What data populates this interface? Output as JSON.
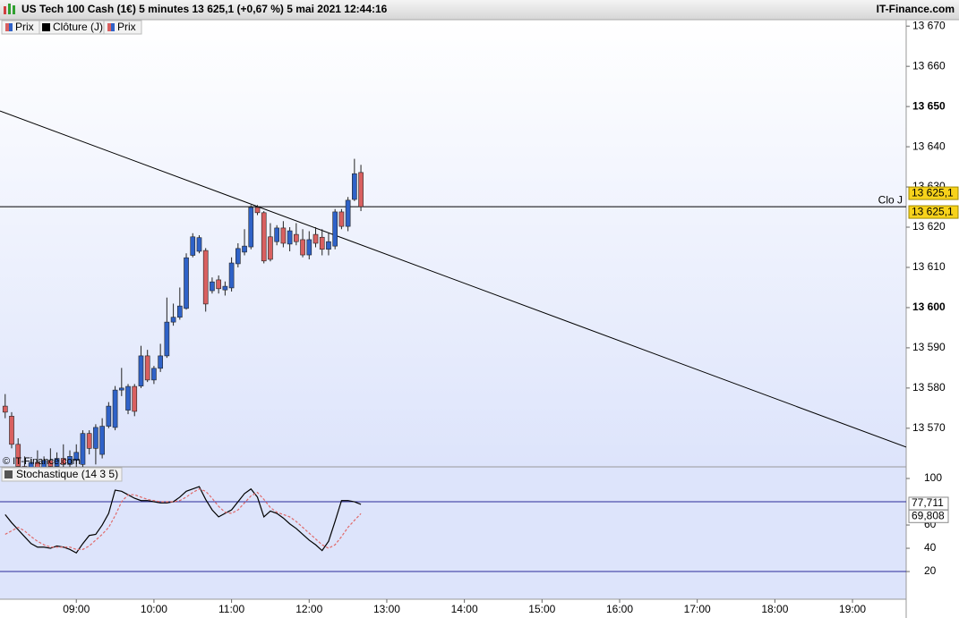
{
  "header": {
    "title": "US Tech 100 Cash (1€) 5 minutes 13 625,1 (+0,67 %) 5 mai 2021 12:44:16",
    "brand": "IT-Finance.com"
  },
  "chart_data": [
    {
      "type": "candlestick",
      "legend": [
        "Prix",
        "Clôture (J)",
        "Prix"
      ],
      "watermark": "© IT-Finance.com",
      "up_color": "#2f62c8",
      "down_color": "#d96060",
      "x": [
        485,
        490,
        495,
        500,
        505,
        510,
        515,
        520,
        525,
        530,
        535,
        540,
        545,
        550,
        555,
        560,
        565,
        570,
        575,
        580,
        585,
        590,
        595,
        600,
        605,
        610,
        615,
        620,
        625,
        630,
        635,
        640,
        645,
        650,
        655,
        660,
        665,
        670,
        675,
        680,
        685,
        690,
        695,
        700,
        705,
        710,
        715,
        720,
        725,
        730,
        735,
        740,
        745,
        750,
        755,
        760
      ],
      "open": [
        13575.5,
        13573.0,
        13566.0,
        13560.5,
        13558.5,
        13561.5,
        13559.0,
        13562.0,
        13560.5,
        13562.5,
        13561.0,
        13562.0,
        13561.0,
        13568.7,
        13565.0,
        13563.5,
        13570.5,
        13570.2,
        13579.5,
        13574.5,
        13580.4,
        13580.5,
        13588.0,
        13582.0,
        13584.9,
        13588.0,
        13596.4,
        13597.6,
        13599.8,
        13613.0,
        13614.0,
        13614.2,
        13604.2,
        13606.9,
        13604.4,
        13604.9,
        13610.9,
        13613.8,
        13615.1,
        13624.9,
        13623.6,
        13617.6,
        13616.4,
        13619.8,
        13615.8,
        13618.2,
        13616.9,
        13613.1,
        13618.2,
        13617.5,
        13614.5,
        13615.3,
        13623.8,
        13620.2,
        13626.9,
        13633.6
      ],
      "high": [
        13578.5,
        13574.0,
        13567.5,
        13563.0,
        13562.5,
        13564.5,
        13563.0,
        13565.0,
        13564.0,
        13566.0,
        13564.5,
        13566.0,
        13569.5,
        13569.5,
        13571.0,
        13572.5,
        13576.5,
        13580.5,
        13585.0,
        13581.0,
        13581.0,
        13590.5,
        13589.5,
        13585.5,
        13591.0,
        13602.5,
        13601.0,
        13605.0,
        13613.5,
        13618.5,
        13618.0,
        13614.8,
        13607.5,
        13608.0,
        13606.5,
        13612.5,
        13616.0,
        13619.5,
        13625.5,
        13625.5,
        13624.0,
        13621.0,
        13620.5,
        13621.5,
        13620.0,
        13621.0,
        13619.5,
        13619.0,
        13620.0,
        13619.5,
        13618.5,
        13624.5,
        13624.5,
        13627.5,
        13637.0,
        13635.5
      ],
      "low": [
        13572.5,
        13565.0,
        13559.0,
        13557.0,
        13556.5,
        13558.0,
        13557.5,
        13559.5,
        13558.0,
        13560.0,
        13558.5,
        13560.0,
        13560.0,
        13563.5,
        13561.0,
        13562.5,
        13570.0,
        13569.5,
        13578.0,
        13573.5,
        13573.0,
        13580.0,
        13581.5,
        13581.0,
        13584.0,
        13587.5,
        13595.5,
        13597.0,
        13599.5,
        13612.5,
        13613.5,
        13599.0,
        13603.5,
        13603.5,
        13603.0,
        13604.0,
        13610.0,
        13613.0,
        13614.5,
        13623.0,
        13611.0,
        13611.5,
        13615.5,
        13615.0,
        13614.0,
        13615.5,
        13612.5,
        13612.0,
        13615.0,
        13613.0,
        13613.0,
        13614.5,
        13619.5,
        13619.0,
        13626.5,
        13624.0
      ],
      "close": [
        13574.0,
        13566.0,
        13560.5,
        13558.5,
        13561.5,
        13559.0,
        13562.0,
        13560.5,
        13562.5,
        13561.0,
        13563.0,
        13564.0,
        13568.7,
        13565.0,
        13570.2,
        13570.5,
        13575.5,
        13579.5,
        13580.0,
        13580.4,
        13574.2,
        13588.0,
        13582.0,
        13584.9,
        13588.0,
        13596.4,
        13597.6,
        13600.4,
        13612.4,
        13617.6,
        13617.4,
        13600.9,
        13606.4,
        13604.7,
        13605.3,
        13611.1,
        13614.7,
        13615.3,
        13624.9,
        13623.6,
        13611.6,
        13612.0,
        13619.8,
        13616.0,
        13619.1,
        13616.4,
        13613.1,
        13616.9,
        13616.0,
        13614.5,
        13616.4,
        13623.8,
        13620.2,
        13626.7,
        13633.3,
        13625.1
      ],
      "xlim": [
        481,
        1181.5
      ],
      "xticks": [
        {
          "value": 540,
          "label": "09:00"
        },
        {
          "value": 600,
          "label": "10:00"
        },
        {
          "value": 660,
          "label": "11:00"
        },
        {
          "value": 720,
          "label": "12:00"
        },
        {
          "value": 780,
          "label": "13:00"
        },
        {
          "value": 840,
          "label": "14:00"
        },
        {
          "value": 900,
          "label": "15:00"
        },
        {
          "value": 960,
          "label": "16:00"
        },
        {
          "value": 1020,
          "label": "17:00"
        },
        {
          "value": 1080,
          "label": "18:00"
        },
        {
          "value": 1140,
          "label": "19:00"
        }
      ],
      "ylim": [
        13560.4,
        13671.6
      ],
      "yticks": [
        {
          "value": 13570,
          "label": "13 570"
        },
        {
          "value": 13580,
          "label": "13 580"
        },
        {
          "value": 13590,
          "label": "13 590"
        },
        {
          "value": 13600,
          "label": "13 600"
        },
        {
          "value": 13610,
          "label": "13 610"
        },
        {
          "value": 13620,
          "label": "13 620"
        },
        {
          "value": 13630,
          "label": "13 630"
        },
        {
          "value": 13640,
          "label": "13 640"
        },
        {
          "value": 13650,
          "label": "13 650"
        },
        {
          "value": 13660,
          "label": "13 660"
        },
        {
          "value": 13670,
          "label": "13 670"
        }
      ],
      "trendline": {
        "x": [
          481,
          1181.5
        ],
        "y": [
          13648.9,
          13565.3
        ]
      },
      "reference_line": {
        "label": "Clo J",
        "value": 13625.1
      },
      "price_labels": [
        {
          "value": 13625.1,
          "label": "13 625,1"
        },
        {
          "value": 13625.1,
          "label": "13 625,1"
        }
      ]
    },
    {
      "type": "line",
      "title": "Stochastique (14 3 5)",
      "x": [
        485,
        490,
        495,
        500,
        505,
        510,
        515,
        520,
        525,
        530,
        535,
        540,
        545,
        550,
        555,
        560,
        565,
        570,
        575,
        580,
        585,
        590,
        595,
        600,
        605,
        610,
        615,
        620,
        625,
        630,
        635,
        640,
        645,
        650,
        655,
        660,
        665,
        670,
        675,
        680,
        685,
        690,
        695,
        700,
        705,
        710,
        715,
        720,
        725,
        730,
        735,
        740,
        745,
        750,
        755,
        760
      ],
      "xlim": [
        481,
        1181.5
      ],
      "ylim": [
        -3.8,
        110
      ],
      "yticks": [
        20,
        40,
        60,
        100
      ],
      "levels": [
        80,
        20
      ],
      "series": [
        {
          "color": "#000000",
          "last_label": "77,711",
          "values": [
            69,
            62,
            56,
            50,
            44,
            41,
            41,
            40,
            42,
            41,
            39,
            36,
            44,
            51,
            52,
            60,
            70,
            90,
            89,
            86,
            83,
            81,
            81,
            80,
            79,
            79,
            80,
            84,
            89,
            91,
            93,
            82,
            73,
            67,
            70,
            73,
            80,
            87,
            91,
            84,
            67,
            72,
            70,
            66,
            61,
            57,
            52,
            47,
            43,
            38,
            46,
            63,
            81,
            81,
            80,
            77.711
          ]
        },
        {
          "color": "#e06a6a",
          "last_label": "69,808",
          "values": [
            52,
            55,
            58,
            55,
            50,
            46,
            43,
            41,
            41,
            41,
            41,
            39,
            39,
            42,
            47,
            52,
            58,
            68,
            80,
            86,
            86,
            84,
            82,
            81,
            80,
            80,
            80,
            81,
            84,
            88,
            91,
            89,
            83,
            76,
            71,
            70,
            73,
            79,
            85,
            88,
            82,
            75,
            71,
            69,
            67,
            63,
            58,
            53,
            48,
            43,
            40,
            43,
            50,
            58,
            64,
            69.808
          ]
        }
      ]
    }
  ]
}
